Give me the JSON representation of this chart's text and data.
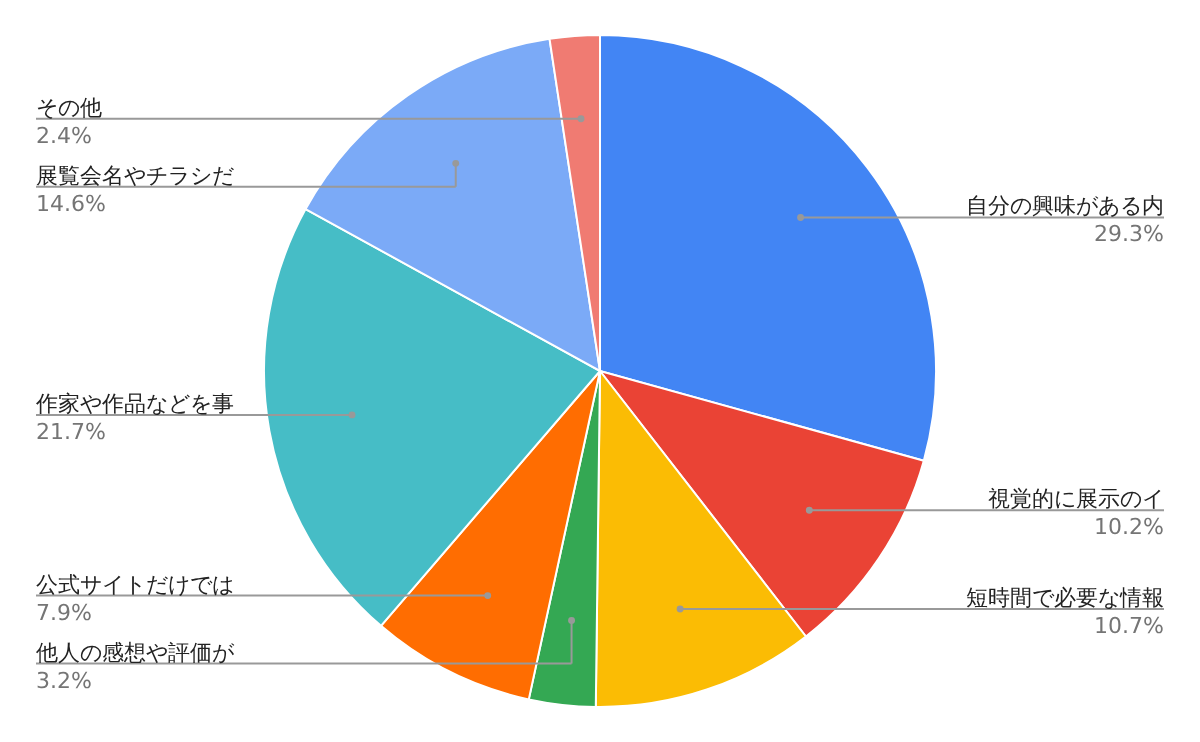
{
  "chart_data": {
    "type": "pie",
    "categories": [
      "自分の興味がある内",
      "視覚的に展示のイ",
      "短時間で必要な情報",
      "他人の感想や評価が",
      "公式サイトだけでは",
      "作家や作品などを事",
      "展覧会名やチラシだ",
      "その他"
    ],
    "values": [
      29.3,
      10.2,
      10.7,
      3.2,
      7.9,
      21.7,
      14.6,
      2.4
    ],
    "colors": [
      "#4285f4",
      "#ea4335",
      "#fbbc04",
      "#34a853",
      "#ff6d01",
      "#46bdc6",
      "#7baaf7",
      "#f07b72"
    ],
    "value_labels": [
      "29.3%",
      "10.2%",
      "10.7%",
      "3.2%",
      "7.9%",
      "21.7%",
      "14.6%",
      "2.4%"
    ]
  }
}
